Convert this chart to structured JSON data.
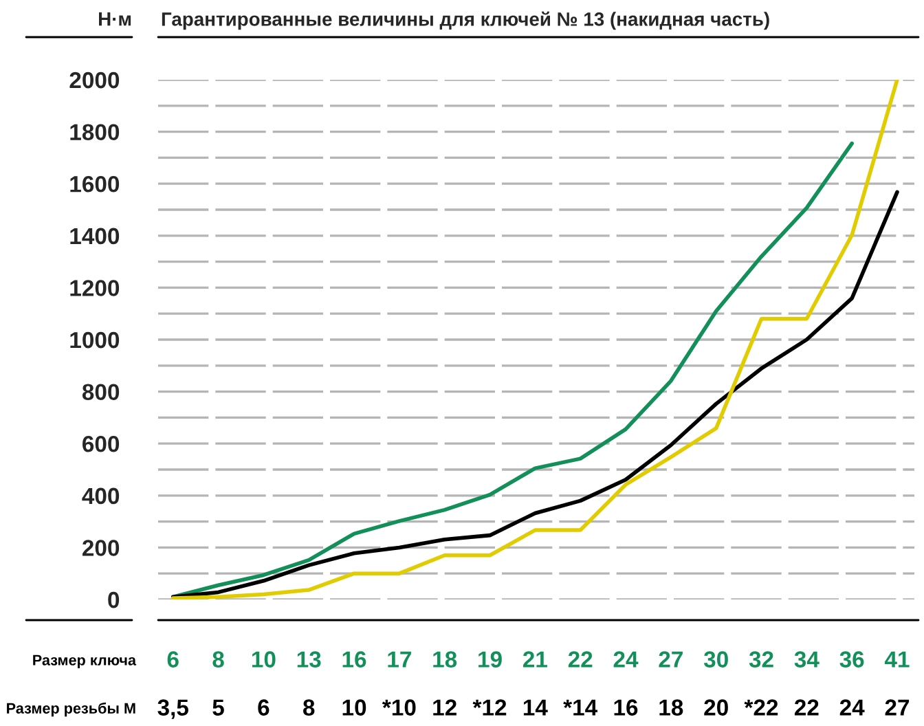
{
  "chart_data": {
    "type": "line",
    "title": "Гарантированные величины для ключей № 13 (накидная часть)",
    "ylabel": "Н·м",
    "xlabel": "Размер ключа\nРазмер резьбы M",
    "categories": [
      "6\n3,5",
      "8\n5",
      "10\n6",
      "13\n8",
      "16\n10",
      "17\n*10",
      "18\n12",
      "19\n*12",
      "21\n14",
      "22\n*14",
      "24\n16",
      "27\n18",
      "30\n20",
      "32\n*22",
      "34\n22",
      "36\n24",
      "41\n27"
    ],
    "series": [
      {
        "color": "#138f5a",
        "values": [
          10,
          55,
          94,
          152,
          253,
          302,
          345,
          403,
          505,
          542,
          655,
          841,
          1110,
          1320,
          1507,
          1755,
          null
        ]
      },
      {
        "color": "#000000",
        "values": [
          10,
          28,
          72,
          132,
          178,
          200,
          231,
          247,
          332,
          380,
          461,
          594,
          753,
          889,
          1000,
          1159,
          1568
        ]
      },
      {
        "color": "#e0cc00",
        "values": [
          5,
          10,
          20,
          37,
          100,
          100,
          170,
          170,
          267,
          267,
          442,
          548,
          659,
          1080,
          1080,
          1402,
          2000
        ]
      }
    ],
    "ylim": [
      0,
      2000
    ],
    "yticks": [
      0,
      {
        "value": 100,
        "label": null
      },
      200,
      {
        "value": 300,
        "label": null
      },
      400,
      {
        "value": 500,
        "label": null
      },
      600,
      {
        "value": 700,
        "label": null
      },
      800,
      {
        "value": 900,
        "label": null
      },
      1000,
      {
        "value": 1100,
        "label": null
      },
      1200,
      {
        "value": 1300,
        "label": null
      },
      1400,
      {
        "value": 1500,
        "label": null
      },
      1600,
      {
        "value": 1700,
        "label": null
      },
      1800,
      {
        "value": 1900,
        "label": null
      },
      2000
    ],
    "grid": "y",
    "marker": "none",
    "line_style": "solid"
  }
}
